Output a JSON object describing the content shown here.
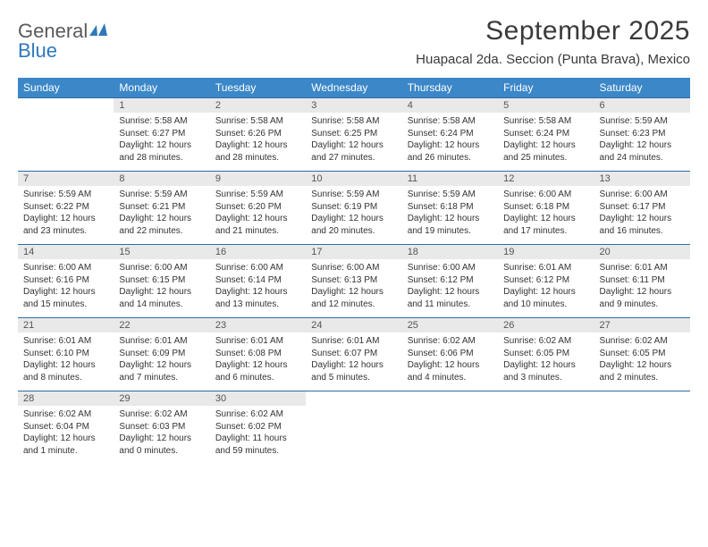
{
  "logo": {
    "general": "General",
    "blue": "Blue"
  },
  "title": "September 2025",
  "location": "Huapacal 2da. Seccion (Punta Brava), Mexico",
  "colors": {
    "header_bg": "#3b87c8",
    "header_text": "#ffffff",
    "daynum_bg": "#e9e9e9",
    "rule": "#2e6ca3",
    "logo_blue": "#2f78bc"
  },
  "dayNames": [
    "Sunday",
    "Monday",
    "Tuesday",
    "Wednesday",
    "Thursday",
    "Friday",
    "Saturday"
  ],
  "weeks": [
    [
      {
        "n": "",
        "sr": "",
        "ss": "",
        "dl1": "",
        "dl2": ""
      },
      {
        "n": "1",
        "sr": "Sunrise: 5:58 AM",
        "ss": "Sunset: 6:27 PM",
        "dl1": "Daylight: 12 hours",
        "dl2": "and 28 minutes."
      },
      {
        "n": "2",
        "sr": "Sunrise: 5:58 AM",
        "ss": "Sunset: 6:26 PM",
        "dl1": "Daylight: 12 hours",
        "dl2": "and 28 minutes."
      },
      {
        "n": "3",
        "sr": "Sunrise: 5:58 AM",
        "ss": "Sunset: 6:25 PM",
        "dl1": "Daylight: 12 hours",
        "dl2": "and 27 minutes."
      },
      {
        "n": "4",
        "sr": "Sunrise: 5:58 AM",
        "ss": "Sunset: 6:24 PM",
        "dl1": "Daylight: 12 hours",
        "dl2": "and 26 minutes."
      },
      {
        "n": "5",
        "sr": "Sunrise: 5:58 AM",
        "ss": "Sunset: 6:24 PM",
        "dl1": "Daylight: 12 hours",
        "dl2": "and 25 minutes."
      },
      {
        "n": "6",
        "sr": "Sunrise: 5:59 AM",
        "ss": "Sunset: 6:23 PM",
        "dl1": "Daylight: 12 hours",
        "dl2": "and 24 minutes."
      }
    ],
    [
      {
        "n": "7",
        "sr": "Sunrise: 5:59 AM",
        "ss": "Sunset: 6:22 PM",
        "dl1": "Daylight: 12 hours",
        "dl2": "and 23 minutes."
      },
      {
        "n": "8",
        "sr": "Sunrise: 5:59 AM",
        "ss": "Sunset: 6:21 PM",
        "dl1": "Daylight: 12 hours",
        "dl2": "and 22 minutes."
      },
      {
        "n": "9",
        "sr": "Sunrise: 5:59 AM",
        "ss": "Sunset: 6:20 PM",
        "dl1": "Daylight: 12 hours",
        "dl2": "and 21 minutes."
      },
      {
        "n": "10",
        "sr": "Sunrise: 5:59 AM",
        "ss": "Sunset: 6:19 PM",
        "dl1": "Daylight: 12 hours",
        "dl2": "and 20 minutes."
      },
      {
        "n": "11",
        "sr": "Sunrise: 5:59 AM",
        "ss": "Sunset: 6:18 PM",
        "dl1": "Daylight: 12 hours",
        "dl2": "and 19 minutes."
      },
      {
        "n": "12",
        "sr": "Sunrise: 6:00 AM",
        "ss": "Sunset: 6:18 PM",
        "dl1": "Daylight: 12 hours",
        "dl2": "and 17 minutes."
      },
      {
        "n": "13",
        "sr": "Sunrise: 6:00 AM",
        "ss": "Sunset: 6:17 PM",
        "dl1": "Daylight: 12 hours",
        "dl2": "and 16 minutes."
      }
    ],
    [
      {
        "n": "14",
        "sr": "Sunrise: 6:00 AM",
        "ss": "Sunset: 6:16 PM",
        "dl1": "Daylight: 12 hours",
        "dl2": "and 15 minutes."
      },
      {
        "n": "15",
        "sr": "Sunrise: 6:00 AM",
        "ss": "Sunset: 6:15 PM",
        "dl1": "Daylight: 12 hours",
        "dl2": "and 14 minutes."
      },
      {
        "n": "16",
        "sr": "Sunrise: 6:00 AM",
        "ss": "Sunset: 6:14 PM",
        "dl1": "Daylight: 12 hours",
        "dl2": "and 13 minutes."
      },
      {
        "n": "17",
        "sr": "Sunrise: 6:00 AM",
        "ss": "Sunset: 6:13 PM",
        "dl1": "Daylight: 12 hours",
        "dl2": "and 12 minutes."
      },
      {
        "n": "18",
        "sr": "Sunrise: 6:00 AM",
        "ss": "Sunset: 6:12 PM",
        "dl1": "Daylight: 12 hours",
        "dl2": "and 11 minutes."
      },
      {
        "n": "19",
        "sr": "Sunrise: 6:01 AM",
        "ss": "Sunset: 6:12 PM",
        "dl1": "Daylight: 12 hours",
        "dl2": "and 10 minutes."
      },
      {
        "n": "20",
        "sr": "Sunrise: 6:01 AM",
        "ss": "Sunset: 6:11 PM",
        "dl1": "Daylight: 12 hours",
        "dl2": "and 9 minutes."
      }
    ],
    [
      {
        "n": "21",
        "sr": "Sunrise: 6:01 AM",
        "ss": "Sunset: 6:10 PM",
        "dl1": "Daylight: 12 hours",
        "dl2": "and 8 minutes."
      },
      {
        "n": "22",
        "sr": "Sunrise: 6:01 AM",
        "ss": "Sunset: 6:09 PM",
        "dl1": "Daylight: 12 hours",
        "dl2": "and 7 minutes."
      },
      {
        "n": "23",
        "sr": "Sunrise: 6:01 AM",
        "ss": "Sunset: 6:08 PM",
        "dl1": "Daylight: 12 hours",
        "dl2": "and 6 minutes."
      },
      {
        "n": "24",
        "sr": "Sunrise: 6:01 AM",
        "ss": "Sunset: 6:07 PM",
        "dl1": "Daylight: 12 hours",
        "dl2": "and 5 minutes."
      },
      {
        "n": "25",
        "sr": "Sunrise: 6:02 AM",
        "ss": "Sunset: 6:06 PM",
        "dl1": "Daylight: 12 hours",
        "dl2": "and 4 minutes."
      },
      {
        "n": "26",
        "sr": "Sunrise: 6:02 AM",
        "ss": "Sunset: 6:05 PM",
        "dl1": "Daylight: 12 hours",
        "dl2": "and 3 minutes."
      },
      {
        "n": "27",
        "sr": "Sunrise: 6:02 AM",
        "ss": "Sunset: 6:05 PM",
        "dl1": "Daylight: 12 hours",
        "dl2": "and 2 minutes."
      }
    ],
    [
      {
        "n": "28",
        "sr": "Sunrise: 6:02 AM",
        "ss": "Sunset: 6:04 PM",
        "dl1": "Daylight: 12 hours",
        "dl2": "and 1 minute."
      },
      {
        "n": "29",
        "sr": "Sunrise: 6:02 AM",
        "ss": "Sunset: 6:03 PM",
        "dl1": "Daylight: 12 hours",
        "dl2": "and 0 minutes."
      },
      {
        "n": "30",
        "sr": "Sunrise: 6:02 AM",
        "ss": "Sunset: 6:02 PM",
        "dl1": "Daylight: 11 hours",
        "dl2": "and 59 minutes."
      },
      {
        "n": "",
        "sr": "",
        "ss": "",
        "dl1": "",
        "dl2": ""
      },
      {
        "n": "",
        "sr": "",
        "ss": "",
        "dl1": "",
        "dl2": ""
      },
      {
        "n": "",
        "sr": "",
        "ss": "",
        "dl1": "",
        "dl2": ""
      },
      {
        "n": "",
        "sr": "",
        "ss": "",
        "dl1": "",
        "dl2": ""
      }
    ]
  ]
}
